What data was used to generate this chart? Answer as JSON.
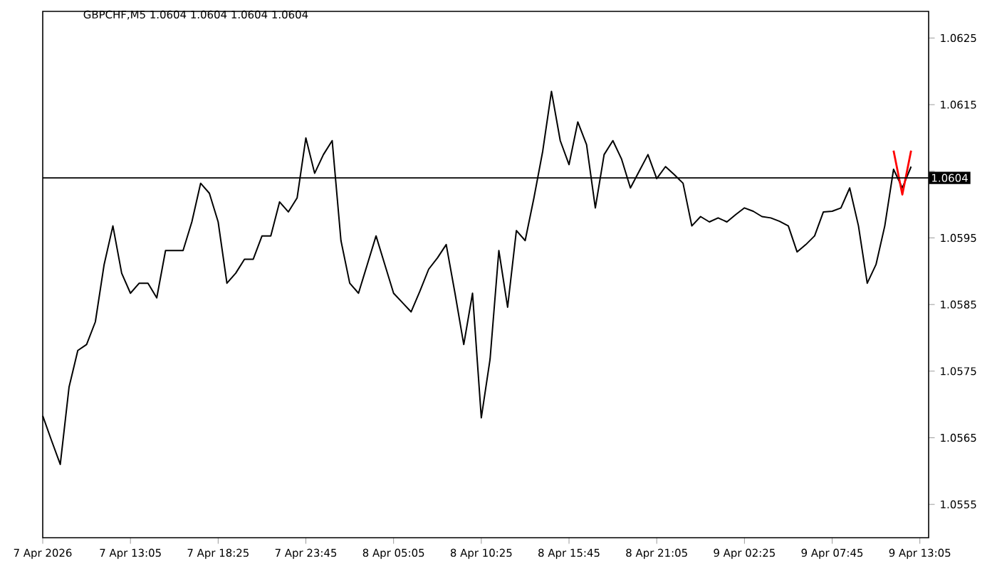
{
  "chart_data": {
    "type": "line",
    "title": "GBPCHF,M5  1.0604 1.0604 1.0604 1.0604",
    "categories": [
      "7 Apr 2026",
      null,
      null,
      null,
      null,
      null,
      null,
      null,
      null,
      null,
      "7 Apr 13:05",
      null,
      null,
      null,
      null,
      null,
      null,
      null,
      null,
      null,
      "7 Apr 18:25",
      null,
      null,
      null,
      null,
      null,
      null,
      null,
      null,
      null,
      "7 Apr 23:45",
      null,
      null,
      null,
      null,
      null,
      null,
      null,
      null,
      null,
      "8 Apr 05:05",
      null,
      null,
      null,
      null,
      null,
      null,
      null,
      null,
      null,
      "8 Apr 10:25",
      null,
      null,
      null,
      null,
      null,
      null,
      null,
      null,
      null,
      "8 Apr 15:45",
      null,
      null,
      null,
      null,
      null,
      null,
      null,
      null,
      null,
      "8 Apr 21:05",
      null,
      null,
      null,
      null,
      null,
      null,
      null,
      null,
      null,
      "9 Apr 02:25",
      null,
      null,
      null,
      null,
      null,
      null,
      null,
      null,
      null,
      "9 Apr 07:45",
      null,
      null,
      null,
      null,
      null,
      null,
      null,
      null,
      null,
      "9 Apr 13:05"
    ],
    "ylim": [
      1.055,
      1.0629
    ],
    "yticks": [
      1.0555,
      1.0565,
      1.0575,
      1.0585,
      1.0595,
      {
        "value": 1.0605,
        "label": null
      },
      1.0615,
      1.0625
    ],
    "ref_lines": [
      {
        "axis": "y",
        "value": 1.0604,
        "label": "1.0604",
        "color": "#000000"
      }
    ],
    "grid": false,
    "marker": "none",
    "line_style": "solid",
    "series": [
      {
        "color": "#000000",
        "values": [
          1.05683,
          1.05646,
          1.0561,
          1.05726,
          1.05781,
          1.0579,
          1.05824,
          1.0591,
          1.05968,
          1.05897,
          1.05867,
          1.05882,
          1.05882,
          1.0586,
          1.05931,
          1.05931,
          1.05931,
          1.05974,
          1.06032,
          1.06017,
          1.05974,
          1.05882,
          1.05897,
          1.05918,
          1.05918,
          1.05953,
          1.05953,
          1.06004,
          1.05989,
          1.0601,
          1.061,
          1.06047,
          1.06075,
          1.06096,
          1.05946,
          1.05882,
          1.05867,
          1.0591,
          1.05953,
          1.0591,
          1.05867,
          1.05853,
          1.05839,
          1.0587,
          1.05903,
          1.0592,
          1.0594,
          1.05867,
          1.0579,
          1.05867,
          1.0568,
          1.05768,
          1.05931,
          1.05846,
          1.05961,
          1.05946,
          1.0601,
          1.0608,
          1.0617,
          1.06096,
          1.0606,
          1.06124,
          1.0609,
          1.05995,
          1.06075,
          1.06096,
          1.06068,
          1.06025,
          1.0605,
          1.06075,
          1.06039,
          1.06057,
          1.06045,
          1.06032,
          1.05968,
          1.05982,
          1.05974,
          1.0598,
          1.05974,
          1.05985,
          1.05995,
          1.0599,
          1.05982,
          1.0598,
          1.05975,
          1.05968,
          1.05929,
          1.0594,
          1.05953,
          1.05989,
          1.0599,
          1.05995,
          1.06025,
          1.05968,
          1.05882,
          1.0591,
          1.05968,
          1.06053,
          1.06025,
          1.06057,
          null
        ]
      },
      {
        "color": "#ff0000",
        "values": [
          null,
          null,
          null,
          null,
          null,
          null,
          null,
          null,
          null,
          null,
          null,
          null,
          null,
          null,
          null,
          null,
          null,
          null,
          null,
          null,
          null,
          null,
          null,
          null,
          null,
          null,
          null,
          null,
          null,
          null,
          null,
          null,
          null,
          null,
          null,
          null,
          null,
          null,
          null,
          null,
          null,
          null,
          null,
          null,
          null,
          null,
          null,
          null,
          null,
          null,
          null,
          null,
          null,
          null,
          null,
          null,
          null,
          null,
          null,
          null,
          null,
          null,
          null,
          null,
          null,
          null,
          null,
          null,
          null,
          null,
          null,
          null,
          null,
          null,
          null,
          null,
          null,
          null,
          null,
          null,
          null,
          null,
          null,
          null,
          null,
          null,
          null,
          null,
          null,
          null,
          null,
          null,
          null,
          null,
          null,
          null,
          null,
          1.06081,
          1.06015,
          1.06081,
          null
        ]
      }
    ]
  }
}
